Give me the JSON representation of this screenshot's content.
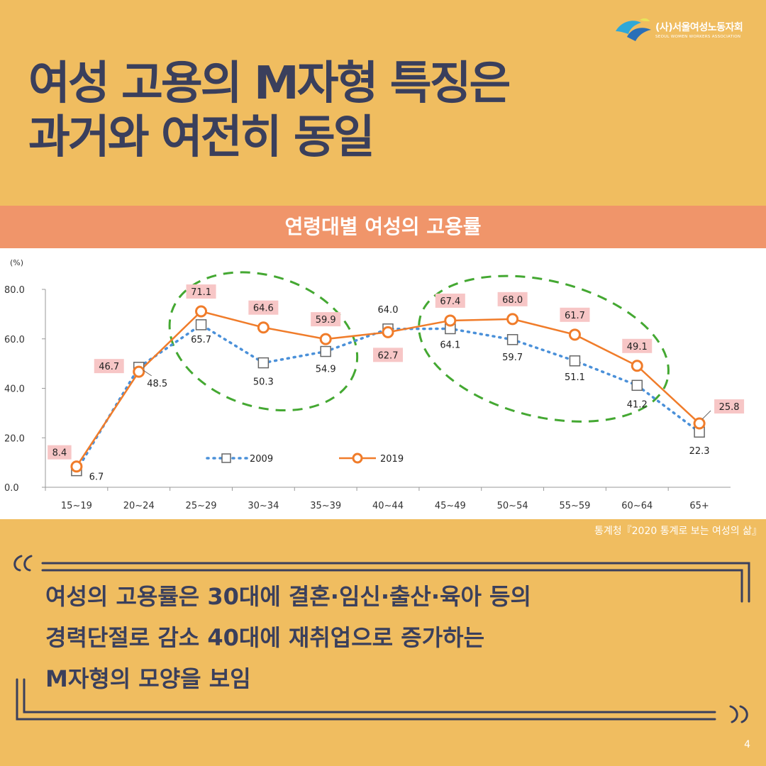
{
  "logo": {
    "name": "(사)서울여성노동자회",
    "subtitle": "SEOUL WOMEN WORKERS ASSOCIATION"
  },
  "title": {
    "line1": "여성 고용의 M자형 특징은",
    "line2": "과거와 여전히 동일"
  },
  "banner": {
    "label": "연령대별 여성의 고용률"
  },
  "source": "통계청『2020 통계로 보는 여성의 삶』",
  "quote": {
    "line1": "여성의 고용률은 30대에 결혼·임신·출산·육아 등의",
    "line2": "경력단절로 감소 40대에 재취업으로 증가하는",
    "line3": "M자형의 모양을 보임"
  },
  "page_number": "4",
  "colors": {
    "background": "#f0bd60",
    "banner": "#f0956a",
    "title": "#3a3f5c",
    "series_2009": "#4a90d9",
    "series_2019": "#f07c2a",
    "ellipse": "#44a832",
    "label_bg": "#f7c6c6"
  },
  "chart_data": {
    "type": "line",
    "ylabel_unit": "(%)",
    "categories": [
      "15~19",
      "20~24",
      "25~29",
      "30~34",
      "35~39",
      "40~44",
      "45~49",
      "50~54",
      "55~59",
      "60~64",
      "65+"
    ],
    "ylim": [
      0,
      80
    ],
    "yticks": [
      "0.0",
      "20.0",
      "40.0",
      "60.0",
      "80.0"
    ],
    "grid": false,
    "legend_position": "bottom-left",
    "series": [
      {
        "name": "2009",
        "values": [
          6.7,
          48.5,
          65.7,
          50.3,
          54.9,
          64.0,
          64.1,
          59.7,
          51.1,
          41.2,
          22.3
        ],
        "style": "dotted-square"
      },
      {
        "name": "2019",
        "values": [
          8.4,
          46.7,
          71.1,
          64.6,
          59.9,
          62.7,
          67.4,
          68.0,
          61.7,
          49.1,
          25.8
        ],
        "style": "solid-circle"
      }
    ]
  }
}
